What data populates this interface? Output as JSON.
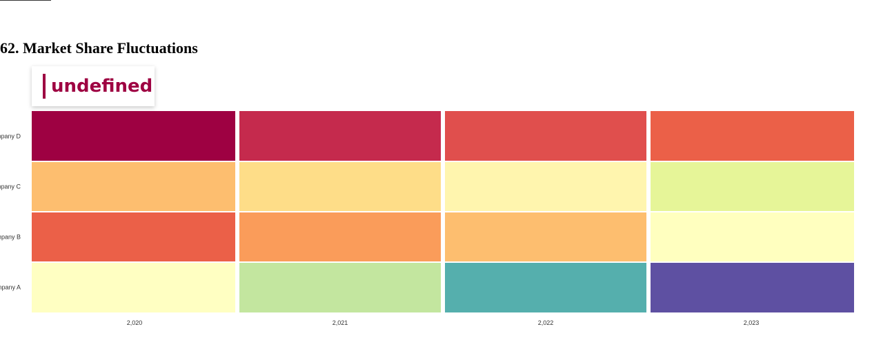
{
  "page": {
    "title": "62. Market Share Fluctuations"
  },
  "legend": {
    "label": "undefined",
    "color": "#9e0142"
  },
  "chart_data": {
    "type": "heatmap",
    "title": "62. Market Share Fluctuations",
    "x_categories": [
      "2,020",
      "2,021",
      "2,022",
      "2,023"
    ],
    "y_categories": [
      "Company D",
      "Company C",
      "Company B",
      "Company A"
    ],
    "color_scheme": "Spectral (high values red, low values purple)",
    "cells": [
      {
        "y": "Company D",
        "x": "2,020",
        "color": "#9e0142"
      },
      {
        "y": "Company D",
        "x": "2,021",
        "color": "#c52a4d"
      },
      {
        "y": "Company D",
        "x": "2,022",
        "color": "#e04f4d"
      },
      {
        "y": "Company D",
        "x": "2,023",
        "color": "#eb6048"
      },
      {
        "y": "Company C",
        "x": "2,020",
        "color": "#fdbe6f"
      },
      {
        "y": "Company C",
        "x": "2,021",
        "color": "#fedd88"
      },
      {
        "y": "Company C",
        "x": "2,022",
        "color": "#fff5ae"
      },
      {
        "y": "Company C",
        "x": "2,023",
        "color": "#e6f598"
      },
      {
        "y": "Company B",
        "x": "2,020",
        "color": "#eb6048"
      },
      {
        "y": "Company B",
        "x": "2,021",
        "color": "#fa9c5a"
      },
      {
        "y": "Company B",
        "x": "2,022",
        "color": "#fdbe6f"
      },
      {
        "y": "Company B",
        "x": "2,023",
        "color": "#ffffbf"
      },
      {
        "y": "Company A",
        "x": "2,020",
        "color": "#ffffc2"
      },
      {
        "y": "Company A",
        "x": "2,021",
        "color": "#c3e69f"
      },
      {
        "y": "Company A",
        "x": "2,022",
        "color": "#55afad"
      },
      {
        "y": "Company A",
        "x": "2,023",
        "color": "#5e50a2"
      }
    ]
  }
}
